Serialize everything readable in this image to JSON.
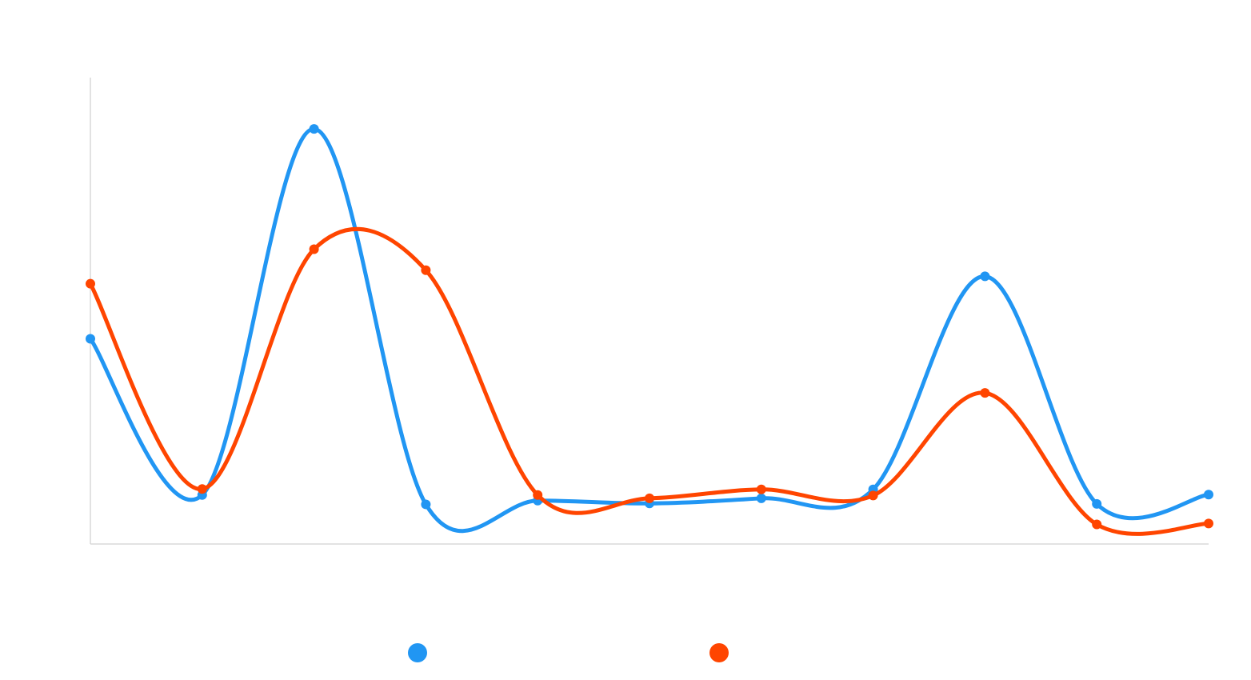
{
  "chart_data": {
    "type": "line",
    "title": "",
    "xlabel": "",
    "ylabel": "",
    "x": [
      1,
      2,
      3,
      4,
      5,
      6,
      7,
      8,
      9,
      10,
      11
    ],
    "ylim": [
      0,
      100
    ],
    "grid": false,
    "legend": "bottom-center",
    "curve": "smooth",
    "series": [
      {
        "color": "#2196F3",
        "values": [
          44,
          10.5,
          89,
          8.5,
          9.3,
          8.7,
          9.8,
          11.7,
          57.4,
          8.6,
          10.6
        ]
      },
      {
        "color": "#FF4500",
        "values": [
          55.8,
          11.8,
          63.2,
          58.7,
          10.5,
          9.8,
          11.7,
          10.4,
          32.4,
          4.2,
          4.4
        ]
      }
    ]
  }
}
